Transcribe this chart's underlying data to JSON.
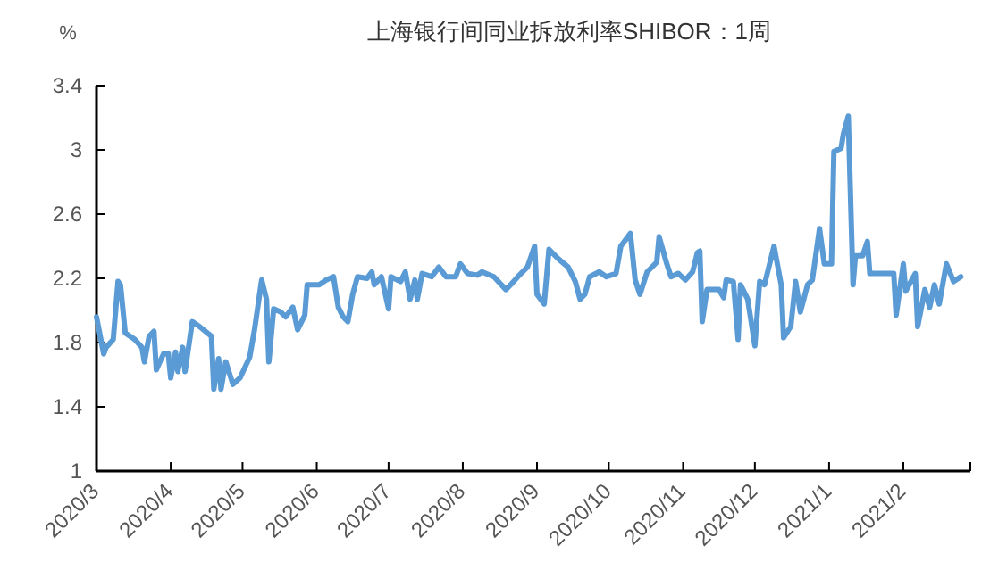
{
  "chart_data": {
    "type": "line",
    "title": "上海银行间同业拆放利率SHIBOR：1周",
    "ylabel": "%",
    "x": [
      "2020-03-01",
      "2020-03-04",
      "2020-03-05",
      "2020-03-08",
      "2020-03-10",
      "2020-03-11",
      "2020-03-13",
      "2020-03-17",
      "2020-03-20",
      "2020-03-21",
      "2020-03-23",
      "2020-03-25",
      "2020-03-26",
      "2020-03-29",
      "2020-03-31",
      "2020-04-01",
      "2020-04-03",
      "2020-04-04",
      "2020-04-06",
      "2020-04-07",
      "2020-04-10",
      "2020-04-13",
      "2020-04-18",
      "2020-04-19",
      "2020-04-21",
      "2020-04-22",
      "2020-04-24",
      "2020-04-27",
      "2020-04-30",
      "2020-05-04",
      "2020-05-06",
      "2020-05-09",
      "2020-05-11",
      "2020-05-12",
      "2020-05-14",
      "2020-05-17",
      "2020-05-19",
      "2020-05-22",
      "2020-05-24",
      "2020-05-27",
      "2020-05-28",
      "2020-06-02",
      "2020-06-05",
      "2020-06-08",
      "2020-06-10",
      "2020-06-12",
      "2020-06-14",
      "2020-06-16",
      "2020-06-18",
      "2020-06-22",
      "2020-06-24",
      "2020-06-25",
      "2020-06-28",
      "2020-07-01",
      "2020-07-02",
      "2020-07-06",
      "2020-07-08",
      "2020-07-10",
      "2020-07-12",
      "2020-07-13",
      "2020-07-15",
      "2020-07-19",
      "2020-07-22",
      "2020-07-25",
      "2020-07-29",
      "2020-07-31",
      "2020-08-03",
      "2020-08-07",
      "2020-08-09",
      "2020-08-14",
      "2020-08-19",
      "2020-08-21",
      "2020-08-24",
      "2020-08-28",
      "2020-08-31",
      "2020-09-01",
      "2020-09-04",
      "2020-09-06",
      "2020-09-10",
      "2020-09-14",
      "2020-09-17",
      "2020-09-19",
      "2020-09-21",
      "2020-09-23",
      "2020-09-27",
      "2020-09-30",
      "2020-10-04",
      "2020-10-06",
      "2020-10-10",
      "2020-10-12",
      "2020-10-14",
      "2020-10-17",
      "2020-10-21",
      "2020-10-22",
      "2020-10-25",
      "2020-10-27",
      "2020-10-30",
      "2020-11-02",
      "2020-11-05",
      "2020-11-07",
      "2020-11-08",
      "2020-11-09",
      "2020-11-11",
      "2020-11-16",
      "2020-11-18",
      "2020-11-19",
      "2020-11-22",
      "2020-11-24",
      "2020-11-25",
      "2020-11-28",
      "2020-12-01",
      "2020-12-03",
      "2020-12-05",
      "2020-12-09",
      "2020-12-12",
      "2020-12-13",
      "2020-12-16",
      "2020-12-18",
      "2020-12-20",
      "2020-12-23",
      "2020-12-25",
      "2020-12-28",
      "2020-12-30",
      "2021-01-02",
      "2021-01-03",
      "2021-01-06",
      "2021-01-07",
      "2021-01-09",
      "2021-01-11",
      "2021-01-12",
      "2021-01-15",
      "2021-01-17",
      "2021-01-18",
      "2021-01-28",
      "2021-01-29",
      "2021-02-01",
      "2021-02-02",
      "2021-02-06",
      "2021-02-07",
      "2021-02-10",
      "2021-02-12",
      "2021-02-14",
      "2021-02-16",
      "2021-02-19",
      "2021-02-22",
      "2021-02-25"
    ],
    "series": [
      {
        "color": "#5b9bd5",
        "values": [
          1.96,
          1.73,
          1.77,
          1.82,
          2.18,
          2.16,
          1.86,
          1.82,
          1.77,
          1.68,
          1.84,
          1.87,
          1.63,
          1.73,
          1.73,
          1.58,
          1.74,
          1.62,
          1.77,
          1.62,
          1.93,
          1.9,
          1.84,
          1.51,
          1.7,
          1.51,
          1.68,
          1.54,
          1.58,
          1.71,
          1.88,
          2.19,
          2.07,
          1.68,
          2.01,
          1.99,
          1.96,
          2.02,
          1.88,
          1.97,
          2.16,
          2.16,
          2.19,
          2.21,
          2.02,
          1.96,
          1.93,
          2.1,
          2.21,
          2.2,
          2.24,
          2.16,
          2.21,
          2.01,
          2.21,
          2.18,
          2.24,
          2.07,
          2.19,
          2.07,
          2.23,
          2.21,
          2.27,
          2.21,
          2.21,
          2.29,
          2.23,
          2.22,
          2.24,
          2.21,
          2.13,
          2.16,
          2.21,
          2.27,
          2.4,
          2.1,
          2.04,
          2.38,
          2.32,
          2.27,
          2.18,
          2.07,
          2.1,
          2.21,
          2.24,
          2.21,
          2.23,
          2.4,
          2.48,
          2.19,
          2.1,
          2.24,
          2.3,
          2.46,
          2.3,
          2.21,
          2.23,
          2.19,
          2.24,
          2.36,
          2.37,
          1.93,
          2.13,
          2.13,
          2.08,
          2.19,
          2.18,
          1.82,
          2.16,
          2.07,
          1.78,
          2.18,
          2.16,
          2.4,
          2.16,
          1.83,
          1.9,
          2.18,
          1.99,
          2.16,
          2.19,
          2.51,
          2.29,
          2.29,
          2.99,
          3.01,
          3.1,
          3.21,
          2.16,
          2.34,
          2.34,
          2.43,
          2.23,
          2.23,
          1.97,
          2.29,
          2.12,
          2.23,
          1.9,
          2.13,
          2.02,
          2.16,
          2.04,
          2.29,
          2.18,
          2.21
        ]
      }
    ],
    "xlim": [
      "2020-03-01",
      "2021-03-01"
    ],
    "xticks": [
      {
        "value": "2020-03-01",
        "label": "2020/3"
      },
      {
        "value": "2020-04-01",
        "label": "2020/4"
      },
      {
        "value": "2020-05-01",
        "label": "2020/5"
      },
      {
        "value": "2020-06-01",
        "label": "2020/6"
      },
      {
        "value": "2020-07-01",
        "label": "2020/7"
      },
      {
        "value": "2020-08-01",
        "label": "2020/8"
      },
      {
        "value": "2020-09-01",
        "label": "2020/9"
      },
      {
        "value": "2020-10-01",
        "label": "2020/10"
      },
      {
        "value": "2020-11-01",
        "label": "2020/11"
      },
      {
        "value": "2020-12-01",
        "label": "2020/12"
      },
      {
        "value": "2021-01-01",
        "label": "2021/1"
      },
      {
        "value": "2021-02-01",
        "label": "2021/2"
      },
      {
        "value": "2021-03-01",
        "label": null
      }
    ],
    "ylim": [
      1,
      3.4
    ],
    "yticks": [
      1,
      1.4,
      1.8,
      2.2,
      2.6,
      3,
      3.4
    ],
    "grid": false,
    "marker": "none",
    "line_style": "solid"
  }
}
